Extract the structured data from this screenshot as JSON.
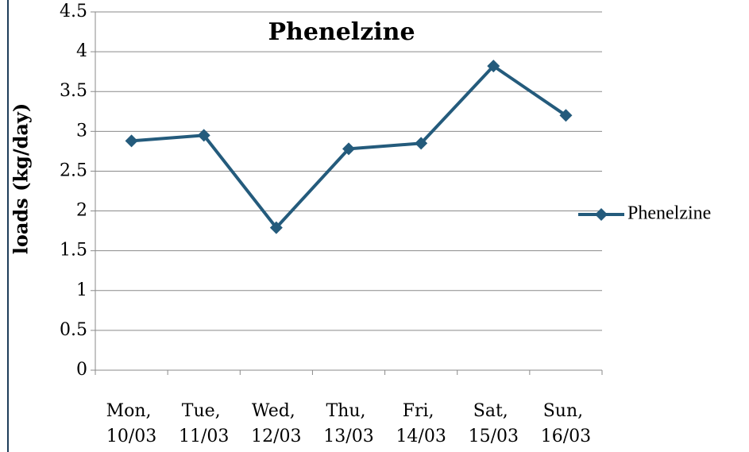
{
  "chart_data": {
    "type": "line",
    "title": "Phenelzine",
    "y_label": "loads (kg/day)",
    "categories": [
      "Mon, 10/03",
      "Tue, 11/03",
      "Wed, 12/03",
      "Thu, 13/03",
      "Fri, 14/03",
      "Sat, 15/03",
      "Sun, 16/03"
    ],
    "series": [
      {
        "name": "Phenelzine",
        "color": "#245b7c",
        "values": [
          2.88,
          2.95,
          1.79,
          2.78,
          2.85,
          3.82,
          3.2
        ]
      }
    ],
    "ylim": [
      0,
      4.5
    ],
    "yticks": [
      0,
      0.5,
      1,
      1.5,
      2,
      2.5,
      3,
      3.5,
      4,
      4.5
    ],
    "grid": true,
    "legend": "right"
  }
}
